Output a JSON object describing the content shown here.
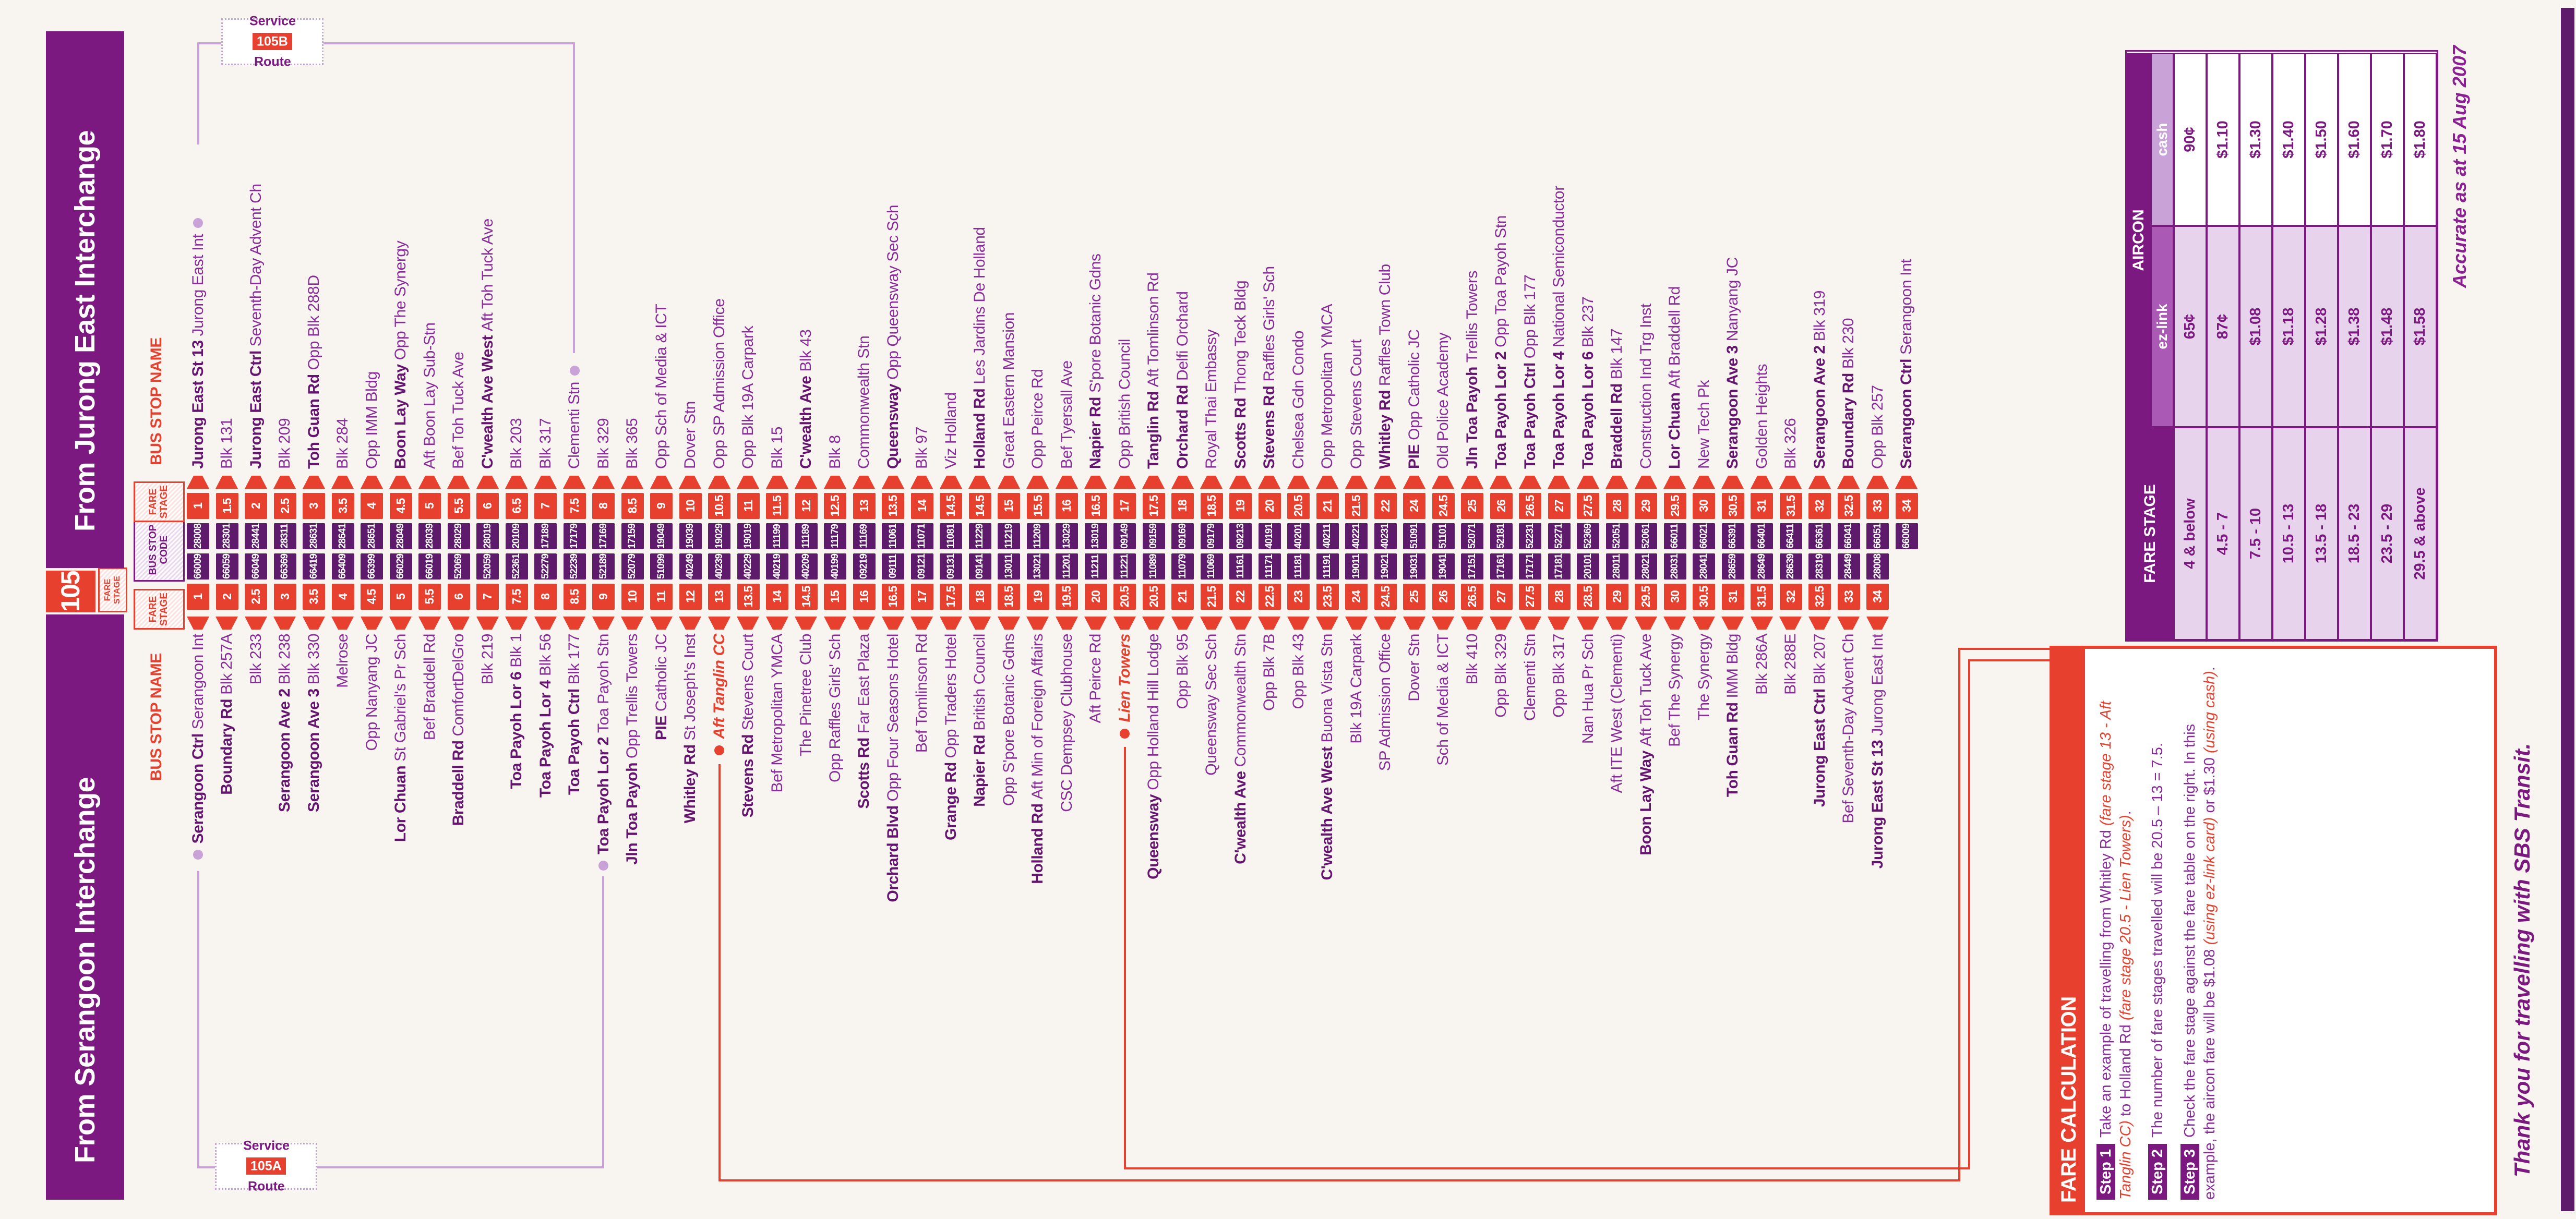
{
  "masthead": {
    "service_number": "105",
    "service_fare_stage_label": "FARE STAGE",
    "from_serangoon": "From Serangoon Interchange",
    "from_jurong": "From Jurong East Interchange"
  },
  "column_headers": {
    "bus_stop_name": "BUS STOP NAME",
    "fare_stage": "FARE STAGE",
    "bus_stop_code": "BUS STOP CODE"
  },
  "route_badges": {
    "a": {
      "service_word": "Service",
      "code": "105A",
      "route_word": "Route"
    },
    "b": {
      "service_word": "Service",
      "code": "105B",
      "route_word": "Route"
    }
  },
  "colors": {
    "purple": "#7c1980",
    "red": "#e8402f",
    "code_purple": "#5e1a6b",
    "lilac_line": "#c9a2d8",
    "lavender": "#e7d4ec"
  },
  "stops": [
    {
      "s": {
        "b": "Serangoon Ctrl",
        "t": "Serangoon Int",
        "st": "1",
        "c": "66009",
        "dot": "p"
      },
      "j": {
        "b": "Jurong East St 13",
        "t": "Jurong East Int",
        "st": "1",
        "c": "28008",
        "dot": "p"
      }
    },
    {
      "s": {
        "b": "Boundary Rd",
        "t": "Blk 257A",
        "st": "2",
        "c": "66059"
      },
      "j": {
        "t": "Blk 131",
        "st": "1.5",
        "c": "28301"
      }
    },
    {
      "s": {
        "t": "Blk 233",
        "st": "2.5",
        "c": "66049"
      },
      "j": {
        "b": "Jurong East Ctrl",
        "t": "Seventh-Day Advent Ch",
        "st": "2",
        "c": "28441"
      }
    },
    {
      "s": {
        "b": "Serangoon Ave 2",
        "t": "Blk 238",
        "st": "3",
        "c": "66369"
      },
      "j": {
        "t": "Blk 209",
        "st": "2.5",
        "c": "28311"
      }
    },
    {
      "s": {
        "b": "Serangoon Ave 3",
        "t": "Blk 330",
        "st": "3.5",
        "c": "66419"
      },
      "j": {
        "b": "Toh Guan Rd",
        "t": "Opp Blk 288D",
        "st": "3",
        "c": "28631"
      }
    },
    {
      "s": {
        "t": "Melrose",
        "st": "4",
        "c": "66409"
      },
      "j": {
        "t": "Blk 284",
        "st": "3.5",
        "c": "28641"
      }
    },
    {
      "s": {
        "t": "Opp Nanyang JC",
        "st": "4.5",
        "c": "66399"
      },
      "j": {
        "t": "Opp IMM Bldg",
        "st": "4",
        "c": "28651"
      }
    },
    {
      "s": {
        "b": "Lor Chuan",
        "t": "St Gabriel's Pr Sch",
        "st": "5",
        "c": "66029"
      },
      "j": {
        "b": "Boon Lay Way",
        "t": "Opp The Synergy",
        "st": "4.5",
        "c": "28049"
      }
    },
    {
      "s": {
        "t": "Bef Braddell Rd",
        "st": "5.5",
        "c": "66019"
      },
      "j": {
        "t": "Aft Boon Lay Sub-Stn",
        "st": "5",
        "c": "28039"
      }
    },
    {
      "s": {
        "b": "Braddell Rd",
        "t": "ComfortDelGro",
        "st": "6",
        "c": "52069"
      },
      "j": {
        "t": "Bef Toh Tuck Ave",
        "st": "5.5",
        "c": "28029"
      }
    },
    {
      "s": {
        "t": "Blk 219",
        "st": "7",
        "c": "52059"
      },
      "j": {
        "b": "C'wealth Ave West",
        "t": "Aft Toh Tuck Ave",
        "st": "6",
        "c": "28019"
      }
    },
    {
      "s": {
        "b": "Toa Payoh Lor 6",
        "t": "Blk 1",
        "st": "7.5",
        "c": "52361"
      },
      "j": {
        "t": "Blk 203",
        "st": "6.5",
        "c": "20109"
      }
    },
    {
      "s": {
        "b": "Toa Payoh Lor 4",
        "t": "Blk 56",
        "st": "8",
        "c": "52279"
      },
      "j": {
        "t": "Blk 317",
        "st": "7",
        "c": "17189"
      }
    },
    {
      "s": {
        "b": "Toa Payoh Ctrl",
        "t": "Blk 177",
        "st": "8.5",
        "c": "52239"
      },
      "j": {
        "t": "Clementi Stn",
        "st": "7.5",
        "c": "17179",
        "dot": "p"
      }
    },
    {
      "s": {
        "b": "Toa Payoh Lor 2",
        "t": "Toa Payoh Stn",
        "st": "9",
        "c": "52189",
        "dot": "p"
      },
      "j": {
        "t": "Blk 329",
        "st": "8",
        "c": "17169"
      }
    },
    {
      "s": {
        "b": "Jln Toa Payoh",
        "t": "Opp Trellis Towers",
        "st": "10",
        "c": "52079"
      },
      "j": {
        "t": "Blk 365",
        "st": "8.5",
        "c": "17159"
      }
    },
    {
      "s": {
        "b": "PIE",
        "t": "Catholic JC",
        "st": "11",
        "c": "51099"
      },
      "j": {
        "t": "Opp Sch of Media & ICT",
        "st": "9",
        "c": "19049"
      }
    },
    {
      "s": {
        "b": "Whitley Rd",
        "t": "St Joseph's Inst",
        "st": "12",
        "c": "40249"
      },
      "j": {
        "t": "Dover Stn",
        "st": "10",
        "c": "19039"
      }
    },
    {
      "s": {
        "t": "Aft Tanglin CC",
        "st": "13",
        "c": "40239",
        "red": true,
        "dot": "r"
      },
      "j": {
        "t": "Opp SP Admission Office",
        "st": "10.5",
        "c": "19029"
      }
    },
    {
      "s": {
        "b": "Stevens Rd",
        "t": "Stevens Court",
        "st": "13.5",
        "c": "40229"
      },
      "j": {
        "t": "Opp Blk 19A Carpark",
        "st": "11",
        "c": "19019"
      }
    },
    {
      "s": {
        "t": "Bef Metropolitan YMCA",
        "st": "14",
        "c": "40219"
      },
      "j": {
        "t": "Blk 15",
        "st": "11.5",
        "c": "11199"
      }
    },
    {
      "s": {
        "t": "The Pinetree Club",
        "st": "14.5",
        "c": "40209"
      },
      "j": {
        "b": "C'wealth Ave",
        "t": "Blk 43",
        "st": "12",
        "c": "11189"
      }
    },
    {
      "s": {
        "t": "Opp Raffles Girls' Sch",
        "st": "15",
        "c": "40199"
      },
      "j": {
        "t": "Blk 8",
        "st": "12.5",
        "c": "11179"
      }
    },
    {
      "s": {
        "b": "Scotts Rd",
        "t": "Far East Plaza",
        "st": "16",
        "c": "09219"
      },
      "j": {
        "t": "Commonwealth Stn",
        "st": "13",
        "c": "11169"
      }
    },
    {
      "s": {
        "b": "Orchard Blvd",
        "t": "Opp Four Seasons Hotel",
        "st": "16.5",
        "c": "09111"
      },
      "j": {
        "b": "Queensway",
        "t": "Opp Queensway Sec Sch",
        "st": "13.5",
        "c": "11061"
      }
    },
    {
      "s": {
        "t": "Bef Tomlinson Rd",
        "st": "17",
        "c": "09121"
      },
      "j": {
        "t": "Blk 97",
        "st": "14",
        "c": "11071"
      }
    },
    {
      "s": {
        "b": "Grange Rd",
        "t": "Opp Traders Hotel",
        "st": "17.5",
        "c": "09131"
      },
      "j": {
        "t": "Viz Holland",
        "st": "14.5",
        "c": "11081"
      }
    },
    {
      "s": {
        "b": "Napier Rd",
        "t": "British Council",
        "st": "18",
        "c": "09141"
      },
      "j": {
        "b": "Holland Rd",
        "t": "Les Jardins De Holland",
        "st": "14.5",
        "c": "11229"
      }
    },
    {
      "s": {
        "t": "Opp S'pore Botanic Gdns",
        "st": "18.5",
        "c": "13011"
      },
      "j": {
        "t": "Great Eastern Mansion",
        "st": "15",
        "c": "11219"
      }
    },
    {
      "s": {
        "b": "Holland Rd",
        "t": "Aft Min of Foreign Affairs",
        "st": "19",
        "c": "13021"
      },
      "j": {
        "t": "Opp Peirce Rd",
        "st": "15.5",
        "c": "11209"
      }
    },
    {
      "s": {
        "t": "CSC Dempsey Clubhouse",
        "st": "19.5",
        "c": "11201"
      },
      "j": {
        "t": "Bef Tyersall Ave",
        "st": "16",
        "c": "13029"
      }
    },
    {
      "s": {
        "t": "Aft Peirce Rd",
        "st": "20",
        "c": "11211"
      },
      "j": {
        "b": "Napier Rd",
        "t": "S'pore Botanic Gdns",
        "st": "16.5",
        "c": "13019"
      }
    },
    {
      "s": {
        "t": "Lien Towers",
        "st": "20.5",
        "c": "11221",
        "red": true,
        "dot": "r"
      },
      "j": {
        "t": "Opp British Council",
        "st": "17",
        "c": "09149"
      }
    },
    {
      "s": {
        "b": "Queensway",
        "t": "Opp Holland Hill Lodge",
        "st": "20.5",
        "c": "11089"
      },
      "j": {
        "b": "Tanglin Rd",
        "t": "Aft Tomlinson Rd",
        "st": "17.5",
        "c": "09159"
      }
    },
    {
      "s": {
        "t": "Opp Blk 95",
        "st": "21",
        "c": "11079"
      },
      "j": {
        "b": "Orchard Rd",
        "t": "Delfi Orchard",
        "st": "18",
        "c": "09169"
      }
    },
    {
      "s": {
        "t": "Queensway Sec Sch",
        "st": "21.5",
        "c": "11069"
      },
      "j": {
        "t": "Royal Thai Embassy",
        "st": "18.5",
        "c": "09179"
      }
    },
    {
      "s": {
        "b": "C'wealth Ave",
        "t": "Commonwealth Stn",
        "st": "22",
        "c": "11161"
      },
      "j": {
        "b": "Scotts Rd",
        "t": "Thong Teck Bldg",
        "st": "19",
        "c": "09213"
      }
    },
    {
      "s": {
        "t": "Opp Blk 7B",
        "st": "22.5",
        "c": "11171"
      },
      "j": {
        "b": "Stevens Rd",
        "t": "Raffles Girls' Sch",
        "st": "20",
        "c": "40191"
      }
    },
    {
      "s": {
        "t": "Opp Blk 43",
        "st": "23",
        "c": "11181"
      },
      "j": {
        "t": "Chelsea Gdn Condo",
        "st": "20.5",
        "c": "40201"
      }
    },
    {
      "s": {
        "b": "C'wealth Ave West",
        "t": "Buona Vista Stn",
        "st": "23.5",
        "c": "11191"
      },
      "j": {
        "t": "Opp Metropolitan YMCA",
        "st": "21",
        "c": "40211"
      }
    },
    {
      "s": {
        "t": "Blk 19A Carpark",
        "st": "24",
        "c": "19011"
      },
      "j": {
        "t": "Opp Stevens Court",
        "st": "21.5",
        "c": "40221"
      }
    },
    {
      "s": {
        "t": "SP Admission Office",
        "st": "24.5",
        "c": "19021"
      },
      "j": {
        "b": "Whitley Rd",
        "t": "Raffles Town Club",
        "st": "22",
        "c": "40231"
      }
    },
    {
      "s": {
        "t": "Dover Stn",
        "st": "25",
        "c": "19031"
      },
      "j": {
        "b": "PIE",
        "t": "Opp Catholic JC",
        "st": "24",
        "c": "51091"
      }
    },
    {
      "s": {
        "t": "Sch of Media & ICT",
        "st": "26",
        "c": "19041"
      },
      "j": {
        "t": "Old Police Academy",
        "st": "24.5",
        "c": "51101"
      }
    },
    {
      "s": {
        "t": "Blk 410",
        "st": "26.5",
        "c": "17151"
      },
      "j": {
        "b": "Jln Toa Payoh",
        "t": "Trellis Towers",
        "st": "25",
        "c": "52071"
      }
    },
    {
      "s": {
        "t": "Opp Blk 329",
        "st": "27",
        "c": "17161"
      },
      "j": {
        "b": "Toa Payoh Lor 2",
        "t": "Opp Toa Payoh Stn",
        "st": "26",
        "c": "52181"
      }
    },
    {
      "s": {
        "t": "Clementi Stn",
        "st": "27.5",
        "c": "17171"
      },
      "j": {
        "b": "Toa Payoh Ctrl",
        "t": "Opp Blk 177",
        "st": "26.5",
        "c": "52231"
      }
    },
    {
      "s": {
        "t": "Opp Blk 317",
        "st": "28",
        "c": "17181"
      },
      "j": {
        "b": "Toa Payoh Lor 4",
        "t": "National Semiconductor",
        "st": "27",
        "c": "52271"
      }
    },
    {
      "s": {
        "t": "Nan Hua Pr Sch",
        "st": "28.5",
        "c": "20101"
      },
      "j": {
        "b": "Toa Payoh Lor 6",
        "t": "Blk 237",
        "st": "27.5",
        "c": "52369"
      }
    },
    {
      "s": {
        "t": "Aft ITE West (Clementi)",
        "st": "29",
        "c": "28011"
      },
      "j": {
        "b": "Braddell Rd",
        "t": "Blk 147",
        "st": "28",
        "c": "52051"
      }
    },
    {
      "s": {
        "b": "Boon Lay Way",
        "t": "Aft Toh Tuck Ave",
        "st": "29.5",
        "c": "28021"
      },
      "j": {
        "t": "Construction Ind Trg Inst",
        "st": "29",
        "c": "52061"
      }
    },
    {
      "s": {
        "t": "Bef The Synergy",
        "st": "30",
        "c": "28031"
      },
      "j": {
        "b": "Lor Chuan",
        "t": "Aft Braddell Rd",
        "st": "29.5",
        "c": "66011"
      }
    },
    {
      "s": {
        "t": "The Synergy",
        "st": "30.5",
        "c": "28041"
      },
      "j": {
        "t": "New Tech Pk",
        "st": "30",
        "c": "66021"
      }
    },
    {
      "s": {
        "b": "Toh Guan Rd",
        "t": "IMM Bldg",
        "st": "31",
        "c": "28659"
      },
      "j": {
        "b": "Serangoon Ave 3",
        "t": "Nanyang JC",
        "st": "30.5",
        "c": "66391"
      }
    },
    {
      "s": {
        "t": "Blk 286A",
        "st": "31.5",
        "c": "28649"
      },
      "j": {
        "t": "Golden Heights",
        "st": "31",
        "c": "66401"
      }
    },
    {
      "s": {
        "t": "Blk 288E",
        "st": "32",
        "c": "28639"
      },
      "j": {
        "t": "Blk 326",
        "st": "31.5",
        "c": "66411"
      }
    },
    {
      "s": {
        "b": "Jurong East Ctrl",
        "t": "Blk 207",
        "st": "32.5",
        "c": "28319"
      },
      "j": {
        "b": "Serangoon Ave 2",
        "t": "Blk 319",
        "st": "32",
        "c": "66361"
      }
    },
    {
      "s": {
        "t": "Bef Seventh-Day Advent Ch",
        "st": "33",
        "c": "28449"
      },
      "j": {
        "b": "Boundary Rd",
        "t": "Blk 230",
        "st": "32.5",
        "c": "66041"
      }
    },
    {
      "s": {
        "b": "Jurong East St 13",
        "t": "Jurong East Int",
        "st": "34",
        "c": "28008"
      },
      "j": {
        "t": "Opp Blk 257",
        "st": "33",
        "c": "66051"
      }
    },
    {
      "s": null,
      "j": {
        "b": "Serangoon Ctrl",
        "t": "Serangoon Int",
        "st": "34",
        "c": "66009"
      }
    }
  ],
  "fare_table": {
    "header_fare_stage": "FARE STAGE",
    "header_aircon": "AIRCON",
    "col_ezlink": "ez-link",
    "col_cash": "cash",
    "rows": [
      {
        "stage": "4 & below",
        "ezlink": "65¢",
        "cash": "90¢"
      },
      {
        "stage": "4.5 - 7",
        "ezlink": "87¢",
        "cash": "$1.10"
      },
      {
        "stage": "7.5 - 10",
        "ezlink": "$1.08",
        "cash": "$1.30"
      },
      {
        "stage": "10.5 - 13",
        "ezlink": "$1.18",
        "cash": "$1.40"
      },
      {
        "stage": "13.5 - 18",
        "ezlink": "$1.28",
        "cash": "$1.50"
      },
      {
        "stage": "18.5 - 23",
        "ezlink": "$1.38",
        "cash": "$1.60"
      },
      {
        "stage": "23.5 - 29",
        "ezlink": "$1.48",
        "cash": "$1.70"
      },
      {
        "stage": "29.5 & above",
        "ezlink": "$1.58",
        "cash": "$1.80"
      }
    ]
  },
  "fare_calculation": {
    "title": "FARE CALCULATION",
    "steps": [
      {
        "label": "Step 1",
        "segments": [
          {
            "t": "Take an example of travelling from Whitley Rd "
          },
          {
            "t": "(fare stage 13 - Aft Tanglin CC)",
            "red": true
          },
          {
            "t": " to Holland Rd "
          },
          {
            "t": "(fare stage 20.5 - Lien Towers)",
            "red": true
          },
          {
            "t": "."
          }
        ]
      },
      {
        "label": "Step 2",
        "segments": [
          {
            "t": "The number of fare stages travelled will be 20.5 – 13 = 7.5."
          }
        ]
      },
      {
        "label": "Step 3",
        "segments": [
          {
            "t": "Check the fare stage against the fare table on the right. In this example, the aircon fare will be $1.08 "
          },
          {
            "t": "(using ez-link card)",
            "red": true
          },
          {
            "t": " or $1.30 "
          },
          {
            "t": "(using cash)",
            "red": true
          },
          {
            "t": "."
          }
        ]
      }
    ]
  },
  "footer": {
    "accurate": "Accurate as at 15 Aug 2007",
    "thanks": "Thank you for travelling with SBS Transit."
  }
}
